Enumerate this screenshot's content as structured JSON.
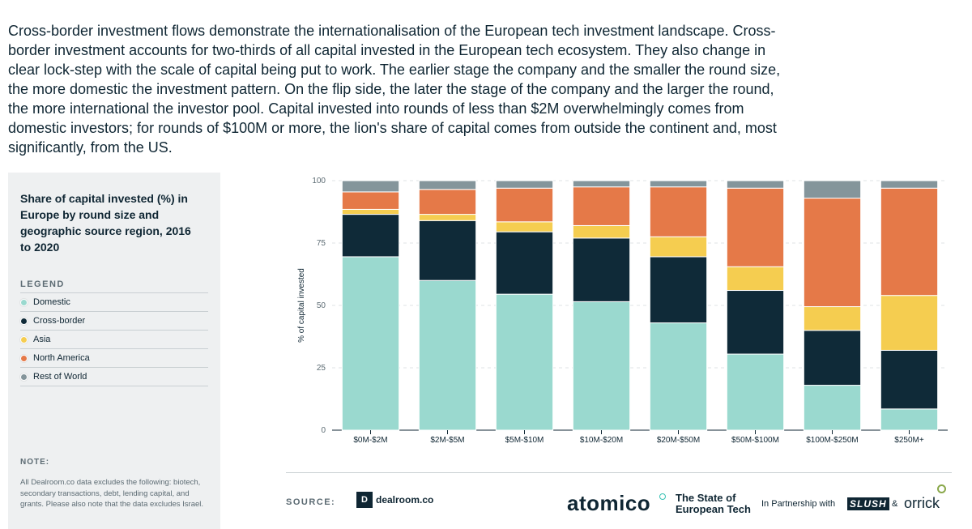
{
  "intro_text": "Cross-border investment flows demonstrate the internationalisation of the European tech investment landscape. Cross-border investment accounts for two-thirds of all capital invested in the European tech ecosystem. They also change in clear lock-step with the scale of capital being put to work. The earlier stage the company and the smaller the round size, the more domestic the investment pattern. On the flip side, the later the stage of the company and the larger the round, the more international the investor pool. Capital invested into rounds of less than $2M overwhelmingly comes from domestic investors; for rounds of $100M or more, the lion's share of capital comes from outside the continent and, most significantly, from the US.",
  "sidebar": {
    "title": "Share of capital invested (%) in Europe by round size and geographic source region, 2016 to 2020",
    "legend_heading": "LEGEND",
    "note_heading": "NOTE:",
    "note_text": "All Dealroom.co data excludes the following: biotech, secondary transactions, debt, lending capital, and grants. Please also note that the data excludes Israel."
  },
  "chart_data": {
    "type": "bar",
    "stacked": true,
    "title": "",
    "xlabel": "",
    "ylabel": "% of capital invested",
    "ylim": [
      0,
      100
    ],
    "yticks": [
      0,
      25,
      50,
      75,
      100
    ],
    "grid": true,
    "legend_placement": "left-sidebar",
    "categories": [
      "$0M-$2M",
      "$2M-$5M",
      "$5M-$10M",
      "$10M-$20M",
      "$20M-$50M",
      "$50M-$100M",
      "$100M-$250M",
      "$250M+"
    ],
    "series": [
      {
        "name": "Domestic",
        "color": "#9ad9cf",
        "values": [
          69.5,
          60,
          54.5,
          51.5,
          43,
          30.5,
          18,
          8.5
        ]
      },
      {
        "name": "Cross-border",
        "color": "#0f2a38",
        "values": [
          17,
          24,
          25,
          25.5,
          26.5,
          25.5,
          22,
          23.5
        ]
      },
      {
        "name": "Asia",
        "color": "#f5cd50",
        "values": [
          2,
          2.5,
          4,
          5,
          8,
          9.5,
          9.5,
          22
        ]
      },
      {
        "name": "North America",
        "color": "#e57948",
        "values": [
          7,
          10,
          13.5,
          15.5,
          20,
          31.5,
          43.5,
          43
        ]
      },
      {
        "name": "Rest of World",
        "color": "#84959b",
        "values": [
          4.5,
          3.5,
          3,
          2.5,
          2.5,
          3,
          7,
          3
        ]
      }
    ]
  },
  "footer": {
    "source_label": "SOURCE:",
    "dealroom_mark": "D",
    "dealroom_text": "dealroom.co",
    "atomico_logo": "atomico",
    "report_title": "The State of European Tech",
    "partnership_text": "In Partnership with",
    "slush_logo": "SLUSH",
    "ampersand": "&",
    "orrick_logo": "orrick"
  }
}
